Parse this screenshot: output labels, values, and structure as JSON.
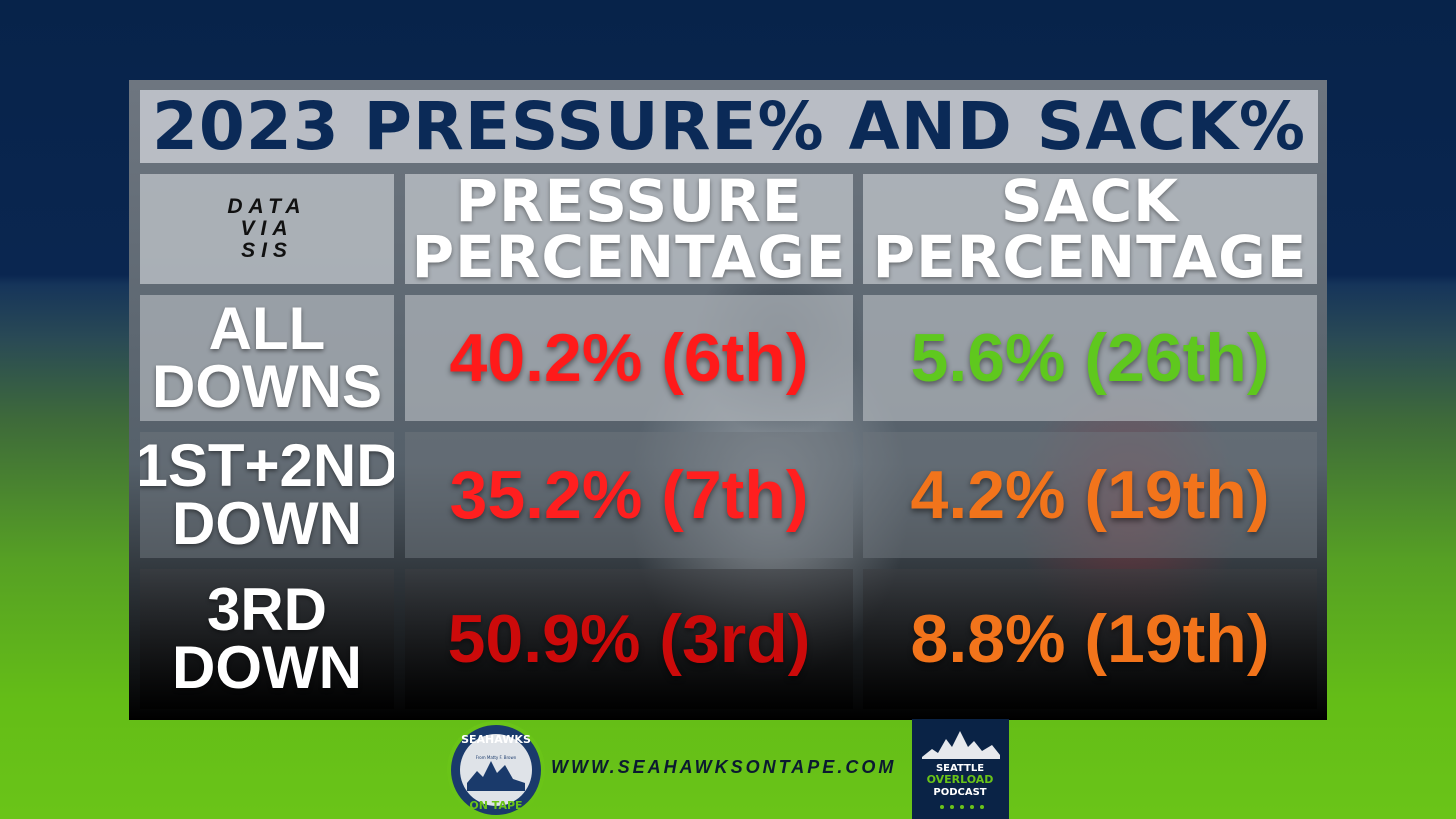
{
  "title": "2023 PRESSURE% AND SACK%",
  "corner": [
    "DATA",
    "VIA",
    "SIS"
  ],
  "columns": [
    [
      "PRESSURE",
      "PERCENTAGE"
    ],
    [
      "SACK",
      "PERCENTAGE"
    ]
  ],
  "rows": [
    {
      "label": [
        "ALL",
        "DOWNS"
      ],
      "pressure": "40.2% (6th)",
      "sack": "5.6% (26th)"
    },
    {
      "label": [
        "1ST+2ND",
        "DOWN"
      ],
      "pressure": "35.2% (7th)",
      "sack": "4.2% (19th)"
    },
    {
      "label": [
        "3RD",
        "DOWN"
      ],
      "pressure": "50.9% (3rd)",
      "sack": "8.8% (19th)"
    }
  ],
  "colors": {
    "title": "#0b2a57",
    "pressure": [
      "#ff1a1a",
      "#ff1f1f",
      "#cc0a0a"
    ],
    "sack": [
      "#5fc81e",
      "#f2741b",
      "#f2741b"
    ]
  },
  "footer": {
    "url": "WWW.SEAHAWKSONTAPE.COM",
    "logo_left": {
      "line1": "SEAHAWKS",
      "tagline": "From Matty F. Brown",
      "line2": "ON TAPE"
    },
    "logo_right": {
      "line1": "SEATTLE",
      "line2": "OVERLOAD",
      "line3": "PODCAST"
    }
  }
}
